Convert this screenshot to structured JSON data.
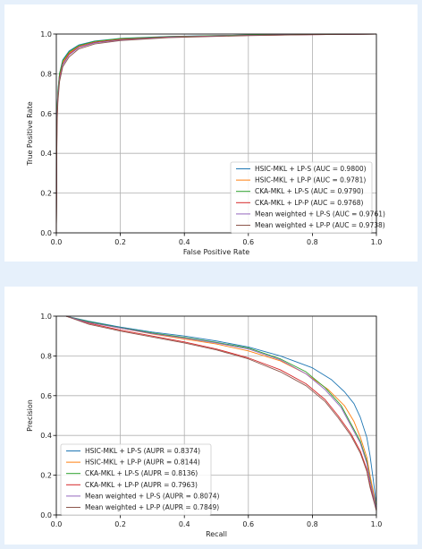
{
  "chart_data": [
    {
      "type": "line",
      "xlabel": "False Positive Rate",
      "ylabel": "True Positive Rate",
      "xlim": [
        0,
        1
      ],
      "ylim": [
        0,
        1
      ],
      "xticks": [
        "0.0",
        "0.2",
        "0.4",
        "0.6",
        "0.8",
        "1.0"
      ],
      "yticks": [
        "0.0",
        "0.2",
        "0.4",
        "0.6",
        "0.8",
        "1.0"
      ],
      "grid": true,
      "legend_position": "lower-right",
      "series": [
        {
          "name": "HSIC-MKL + LP-S (AUC = 0.9800)",
          "color": "#1f77b4",
          "points": [
            [
              0,
              0
            ],
            [
              0.002,
              0.6
            ],
            [
              0.005,
              0.72
            ],
            [
              0.01,
              0.8
            ],
            [
              0.02,
              0.87
            ],
            [
              0.04,
              0.915
            ],
            [
              0.07,
              0.945
            ],
            [
              0.12,
              0.965
            ],
            [
              0.2,
              0.978
            ],
            [
              0.35,
              0.988
            ],
            [
              0.6,
              0.995
            ],
            [
              0.8,
              0.998
            ],
            [
              1,
              1
            ]
          ]
        },
        {
          "name": "HSIC-MKL + LP-P (AUC = 0.9781)",
          "color": "#ff7f0e",
          "points": [
            [
              0,
              0
            ],
            [
              0.002,
              0.58
            ],
            [
              0.005,
              0.7
            ],
            [
              0.01,
              0.79
            ],
            [
              0.02,
              0.86
            ],
            [
              0.04,
              0.905
            ],
            [
              0.07,
              0.94
            ],
            [
              0.12,
              0.962
            ],
            [
              0.2,
              0.975
            ],
            [
              0.35,
              0.986
            ],
            [
              0.6,
              0.994
            ],
            [
              0.8,
              0.998
            ],
            [
              1,
              1
            ]
          ]
        },
        {
          "name": "CKA-MKL + LP-S (AUC = 0.9790)",
          "color": "#2ca02c",
          "points": [
            [
              0,
              0
            ],
            [
              0.002,
              0.6
            ],
            [
              0.005,
              0.71
            ],
            [
              0.01,
              0.8
            ],
            [
              0.02,
              0.865
            ],
            [
              0.04,
              0.91
            ],
            [
              0.07,
              0.942
            ],
            [
              0.12,
              0.963
            ],
            [
              0.2,
              0.977
            ],
            [
              0.35,
              0.987
            ],
            [
              0.6,
              0.995
            ],
            [
              0.8,
              0.998
            ],
            [
              1,
              1
            ]
          ]
        },
        {
          "name": "CKA-MKL + LP-P (AUC = 0.9768)",
          "color": "#d62728",
          "points": [
            [
              0,
              0
            ],
            [
              0.002,
              0.56
            ],
            [
              0.005,
              0.68
            ],
            [
              0.01,
              0.78
            ],
            [
              0.02,
              0.85
            ],
            [
              0.04,
              0.9
            ],
            [
              0.07,
              0.935
            ],
            [
              0.12,
              0.958
            ],
            [
              0.2,
              0.972
            ],
            [
              0.35,
              0.985
            ],
            [
              0.6,
              0.993
            ],
            [
              0.8,
              0.997
            ],
            [
              1,
              1
            ]
          ]
        },
        {
          "name": "Mean weighted + LP-S (AUC = 0.9761)",
          "color": "#9467bd",
          "points": [
            [
              0,
              0
            ],
            [
              0.002,
              0.56
            ],
            [
              0.005,
              0.68
            ],
            [
              0.01,
              0.77
            ],
            [
              0.02,
              0.845
            ],
            [
              0.04,
              0.895
            ],
            [
              0.07,
              0.932
            ],
            [
              0.12,
              0.955
            ],
            [
              0.2,
              0.97
            ],
            [
              0.35,
              0.984
            ],
            [
              0.6,
              0.993
            ],
            [
              0.8,
              0.997
            ],
            [
              1,
              1
            ]
          ]
        },
        {
          "name": "Mean weighted + LP-P (AUC = 0.9738)",
          "color": "#8c564b",
          "points": [
            [
              0,
              0
            ],
            [
              0.002,
              0.54
            ],
            [
              0.005,
              0.66
            ],
            [
              0.01,
              0.76
            ],
            [
              0.02,
              0.835
            ],
            [
              0.04,
              0.885
            ],
            [
              0.07,
              0.925
            ],
            [
              0.12,
              0.95
            ],
            [
              0.2,
              0.967
            ],
            [
              0.35,
              0.982
            ],
            [
              0.6,
              0.992
            ],
            [
              0.8,
              0.997
            ],
            [
              1,
              1
            ]
          ]
        }
      ]
    },
    {
      "type": "line",
      "xlabel": "Recall",
      "ylabel": "Precision",
      "xlim": [
        0,
        1
      ],
      "ylim": [
        0,
        1
      ],
      "xticks": [
        "0.0",
        "0.2",
        "0.4",
        "0.6",
        "0.8",
        "1.0"
      ],
      "yticks": [
        "0.0",
        "0.2",
        "0.4",
        "0.6",
        "0.8",
        "1.0"
      ],
      "grid": true,
      "legend_position": "lower-left",
      "series": [
        {
          "name": "HSIC-MKL + LP-S (AUPR = 0.8374)",
          "color": "#1f77b4",
          "points": [
            [
              0.03,
              1
            ],
            [
              0.1,
              0.975
            ],
            [
              0.2,
              0.945
            ],
            [
              0.3,
              0.92
            ],
            [
              0.4,
              0.9
            ],
            [
              0.5,
              0.875
            ],
            [
              0.6,
              0.845
            ],
            [
              0.7,
              0.8
            ],
            [
              0.8,
              0.74
            ],
            [
              0.86,
              0.68
            ],
            [
              0.9,
              0.62
            ],
            [
              0.93,
              0.56
            ],
            [
              0.95,
              0.49
            ],
            [
              0.97,
              0.39
            ],
            [
              0.98,
              0.3
            ],
            [
              0.99,
              0.18
            ],
            [
              1,
              0.05
            ]
          ]
        },
        {
          "name": "HSIC-MKL + LP-P (AUPR = 0.8144)",
          "color": "#ff7f0e",
          "points": [
            [
              0.03,
              1
            ],
            [
              0.1,
              0.97
            ],
            [
              0.2,
              0.94
            ],
            [
              0.3,
              0.91
            ],
            [
              0.4,
              0.885
            ],
            [
              0.5,
              0.86
            ],
            [
              0.6,
              0.825
            ],
            [
              0.7,
              0.775
            ],
            [
              0.78,
              0.71
            ],
            [
              0.85,
              0.63
            ],
            [
              0.9,
              0.55
            ],
            [
              0.93,
              0.47
            ],
            [
              0.95,
              0.39
            ],
            [
              0.97,
              0.29
            ],
            [
              0.98,
              0.2
            ],
            [
              0.99,
              0.12
            ],
            [
              1,
              0.04
            ]
          ]
        },
        {
          "name": "CKA-MKL + LP-S (AUPR = 0.8136)",
          "color": "#2ca02c",
          "points": [
            [
              0.03,
              1
            ],
            [
              0.1,
              0.972
            ],
            [
              0.2,
              0.942
            ],
            [
              0.3,
              0.915
            ],
            [
              0.4,
              0.893
            ],
            [
              0.5,
              0.868
            ],
            [
              0.6,
              0.84
            ],
            [
              0.7,
              0.785
            ],
            [
              0.78,
              0.72
            ],
            [
              0.84,
              0.64
            ],
            [
              0.89,
              0.55
            ],
            [
              0.92,
              0.46
            ],
            [
              0.95,
              0.37
            ],
            [
              0.97,
              0.27
            ],
            [
              0.98,
              0.18
            ],
            [
              0.99,
              0.1
            ],
            [
              1,
              0.04
            ]
          ]
        },
        {
          "name": "CKA-MKL + LP-P (AUPR = 0.7963)",
          "color": "#d62728",
          "points": [
            [
              0.03,
              1
            ],
            [
              0.1,
              0.965
            ],
            [
              0.2,
              0.93
            ],
            [
              0.3,
              0.9
            ],
            [
              0.4,
              0.87
            ],
            [
              0.5,
              0.835
            ],
            [
              0.6,
              0.79
            ],
            [
              0.7,
              0.73
            ],
            [
              0.78,
              0.66
            ],
            [
              0.84,
              0.58
            ],
            [
              0.88,
              0.5
            ],
            [
              0.92,
              0.41
            ],
            [
              0.95,
              0.32
            ],
            [
              0.97,
              0.23
            ],
            [
              0.98,
              0.15
            ],
            [
              0.99,
              0.09
            ],
            [
              1,
              0.03
            ]
          ]
        },
        {
          "name": "Mean weighted + LP-S (AUPR = 0.8074)",
          "color": "#9467bd",
          "points": [
            [
              0.03,
              1
            ],
            [
              0.1,
              0.968
            ],
            [
              0.2,
              0.94
            ],
            [
              0.3,
              0.912
            ],
            [
              0.4,
              0.89
            ],
            [
              0.5,
              0.865
            ],
            [
              0.6,
              0.835
            ],
            [
              0.7,
              0.78
            ],
            [
              0.78,
              0.71
            ],
            [
              0.84,
              0.63
            ],
            [
              0.89,
              0.54
            ],
            [
              0.92,
              0.45
            ],
            [
              0.95,
              0.36
            ],
            [
              0.97,
              0.26
            ],
            [
              0.98,
              0.17
            ],
            [
              0.99,
              0.1
            ],
            [
              1,
              0.03
            ]
          ]
        },
        {
          "name": "Mean weighted + LP-P (AUPR = 0.7849)",
          "color": "#8c564b",
          "points": [
            [
              0.03,
              1
            ],
            [
              0.1,
              0.96
            ],
            [
              0.2,
              0.925
            ],
            [
              0.3,
              0.895
            ],
            [
              0.4,
              0.865
            ],
            [
              0.5,
              0.83
            ],
            [
              0.6,
              0.785
            ],
            [
              0.7,
              0.72
            ],
            [
              0.78,
              0.65
            ],
            [
              0.84,
              0.57
            ],
            [
              0.88,
              0.49
            ],
            [
              0.92,
              0.4
            ],
            [
              0.95,
              0.31
            ],
            [
              0.97,
              0.22
            ],
            [
              0.98,
              0.14
            ],
            [
              0.99,
              0.08
            ],
            [
              1,
              0.02
            ]
          ]
        }
      ]
    }
  ]
}
